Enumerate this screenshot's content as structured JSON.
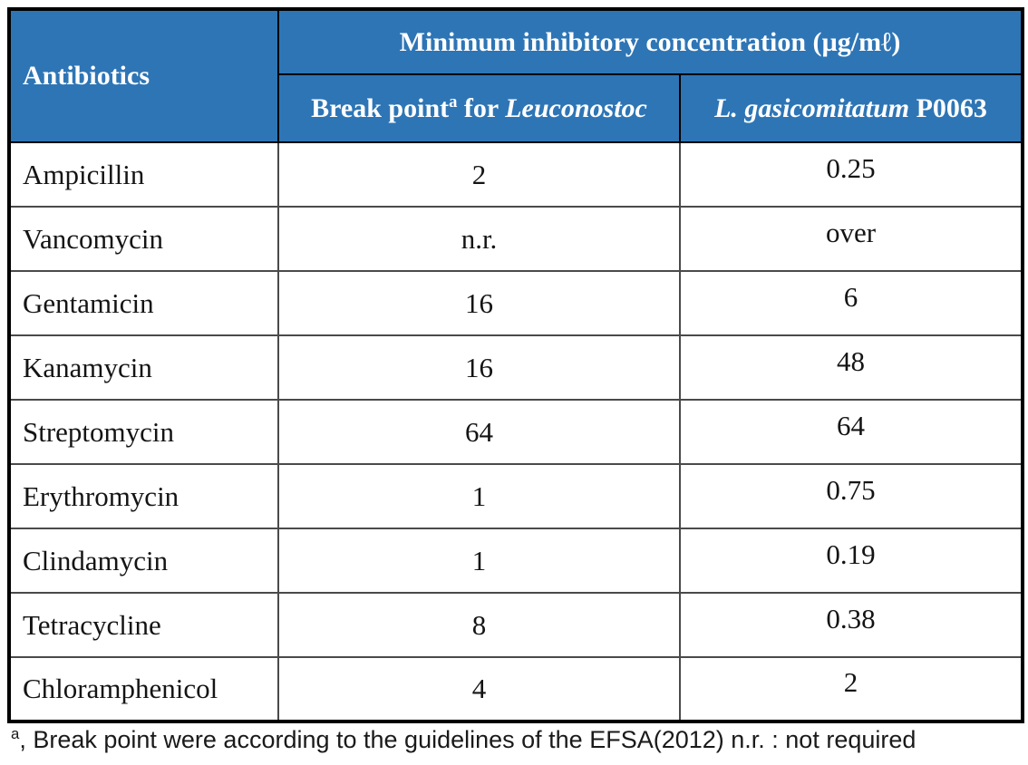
{
  "table": {
    "header": {
      "antibiotics": "Antibiotics",
      "mic_title": "Minimum inhibitory concentration (µg/mℓ)",
      "breakpoint_prefix": "Break point",
      "breakpoint_sup": "a",
      "breakpoint_mid": " for ",
      "breakpoint_species": "Leuconostoc",
      "strain_species": "L. gasicomitatum",
      "strain_suffix": " P0063"
    },
    "rows": [
      {
        "antibiotic": "Ampicillin",
        "breakpoint": "2",
        "mic": "0.25"
      },
      {
        "antibiotic": "Vancomycin",
        "breakpoint": "n.r.",
        "mic": "over"
      },
      {
        "antibiotic": "Gentamicin",
        "breakpoint": "16",
        "mic": "6"
      },
      {
        "antibiotic": "Kanamycin",
        "breakpoint": "16",
        "mic": "48"
      },
      {
        "antibiotic": "Streptomycin",
        "breakpoint": "64",
        "mic": "64"
      },
      {
        "antibiotic": "Erythromycin",
        "breakpoint": "1",
        "mic": "0.75"
      },
      {
        "antibiotic": "Clindamycin",
        "breakpoint": "1",
        "mic": "0.19"
      },
      {
        "antibiotic": "Tetracycline",
        "breakpoint": "8",
        "mic": "0.38"
      },
      {
        "antibiotic": "Chloramphenicol",
        "breakpoint": "4",
        "mic": "2"
      }
    ]
  },
  "footnote": {
    "sup": "a",
    "text": ", Break point were according to the guidelines of the EFSA(2012) n.r. : not required"
  },
  "colors": {
    "header_bg": "#2e75b5",
    "header_text": "#ffffff",
    "outer_border": "#000000",
    "inner_border": "#4a4a4a"
  }
}
